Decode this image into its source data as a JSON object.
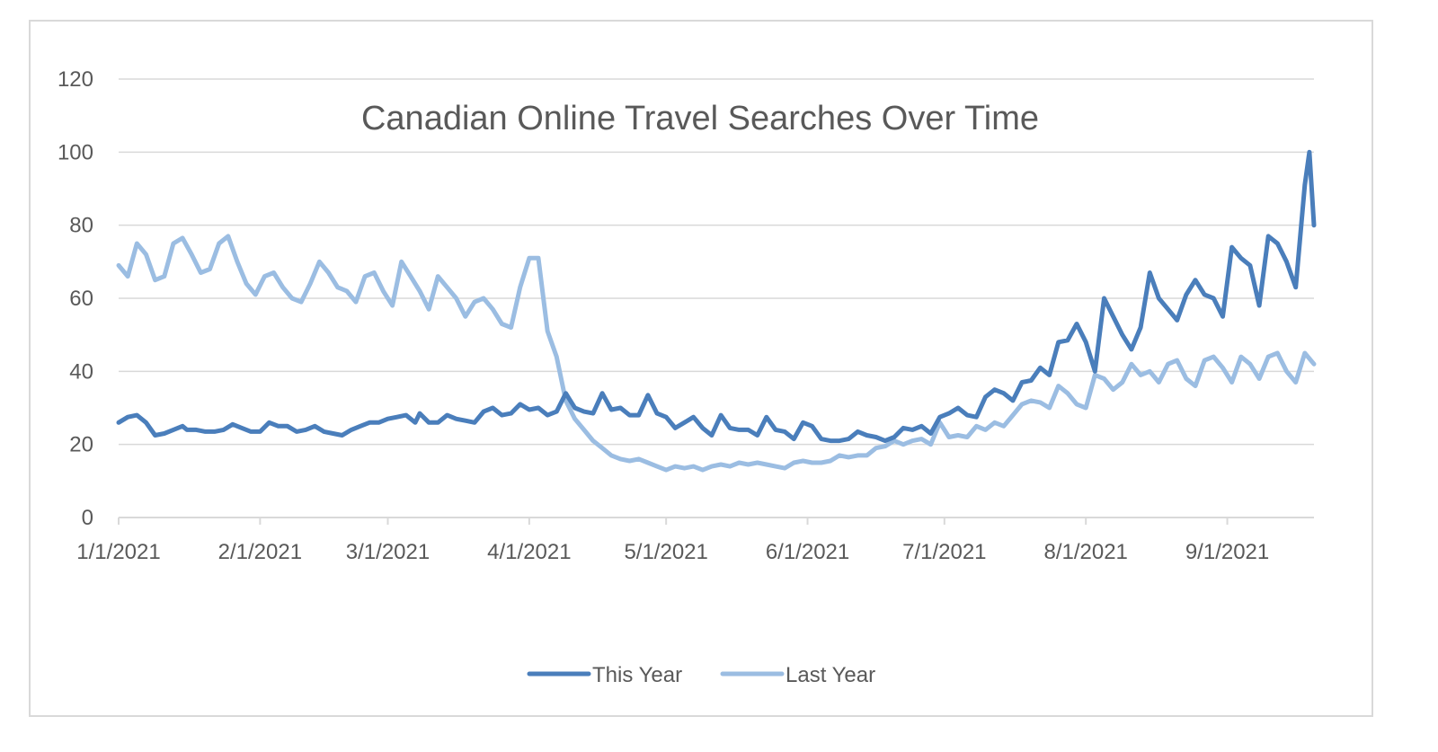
{
  "chart_data": {
    "type": "line",
    "title": "Canadian Online Travel Searches Over Time",
    "xlabel": "",
    "ylabel": "",
    "ylim": [
      0,
      120
    ],
    "y_ticks": [
      0,
      20,
      40,
      60,
      80,
      100,
      120
    ],
    "x_tick_labels": [
      "1/1/2021",
      "2/1/2021",
      "3/1/2021",
      "4/1/2021",
      "5/1/2021",
      "6/1/2021",
      "7/1/2021",
      "8/1/2021",
      "9/1/2021"
    ],
    "x_tick_days": [
      0,
      31,
      59,
      90,
      120,
      151,
      181,
      212,
      243
    ],
    "x_max_day": 262,
    "grid": "horizontal",
    "legend_position": "bottom",
    "colors": {
      "this_year": "#4a7ebb",
      "last_year": "#9bbde2",
      "grid": "#d9d9d9",
      "text": "#595959"
    },
    "series": [
      {
        "name": "This Year",
        "points": [
          [
            0,
            26
          ],
          [
            2,
            27.5
          ],
          [
            4,
            28
          ],
          [
            6,
            26
          ],
          [
            8,
            22.5
          ],
          [
            10,
            23
          ],
          [
            12,
            24
          ],
          [
            14,
            25
          ],
          [
            15,
            24
          ],
          [
            17,
            24
          ],
          [
            19,
            23.5
          ],
          [
            21,
            23.5
          ],
          [
            23,
            24
          ],
          [
            25,
            25.5
          ],
          [
            27,
            24.5
          ],
          [
            29,
            23.5
          ],
          [
            31,
            23.5
          ],
          [
            33,
            26
          ],
          [
            35,
            25
          ],
          [
            37,
            25
          ],
          [
            39,
            23.5
          ],
          [
            41,
            24
          ],
          [
            43,
            25
          ],
          [
            45,
            23.5
          ],
          [
            47,
            23
          ],
          [
            49,
            22.5
          ],
          [
            51,
            24
          ],
          [
            53,
            25
          ],
          [
            55,
            26
          ],
          [
            57,
            26
          ],
          [
            59,
            27
          ],
          [
            61,
            27.5
          ],
          [
            63,
            28
          ],
          [
            65,
            26
          ],
          [
            66,
            28.5
          ],
          [
            68,
            26
          ],
          [
            70,
            26
          ],
          [
            72,
            28
          ],
          [
            74,
            27
          ],
          [
            76,
            26.5
          ],
          [
            78,
            26
          ],
          [
            80,
            29
          ],
          [
            82,
            30
          ],
          [
            84,
            28
          ],
          [
            86,
            28.5
          ],
          [
            88,
            31
          ],
          [
            90,
            29.5
          ],
          [
            92,
            30
          ],
          [
            94,
            28
          ],
          [
            96,
            29
          ],
          [
            98,
            34
          ],
          [
            100,
            30
          ],
          [
            102,
            29
          ],
          [
            104,
            28.5
          ],
          [
            106,
            34
          ],
          [
            108,
            29.5
          ],
          [
            110,
            30
          ],
          [
            112,
            28
          ],
          [
            114,
            28
          ],
          [
            116,
            33.5
          ],
          [
            118,
            28.5
          ],
          [
            120,
            27.5
          ],
          [
            122,
            24.5
          ],
          [
            124,
            26
          ],
          [
            126,
            27.5
          ],
          [
            128,
            24.5
          ],
          [
            130,
            22.5
          ],
          [
            132,
            28
          ],
          [
            134,
            24.5
          ],
          [
            136,
            24
          ],
          [
            138,
            24
          ],
          [
            140,
            22.5
          ],
          [
            142,
            27.5
          ],
          [
            144,
            24
          ],
          [
            146,
            23.5
          ],
          [
            148,
            21.5
          ],
          [
            150,
            26
          ],
          [
            152,
            25
          ],
          [
            154,
            21.5
          ],
          [
            156,
            21
          ],
          [
            158,
            21
          ],
          [
            160,
            21.5
          ],
          [
            162,
            23.5
          ],
          [
            164,
            22.5
          ],
          [
            166,
            22
          ],
          [
            168,
            21
          ],
          [
            170,
            22
          ],
          [
            172,
            24.5
          ],
          [
            174,
            24
          ],
          [
            176,
            25
          ],
          [
            178,
            23
          ],
          [
            180,
            27.5
          ],
          [
            182,
            28.5
          ],
          [
            184,
            30
          ],
          [
            186,
            28
          ],
          [
            188,
            27.5
          ],
          [
            190,
            33
          ],
          [
            192,
            35
          ],
          [
            194,
            34
          ],
          [
            196,
            32
          ],
          [
            198,
            37
          ],
          [
            200,
            37.5
          ],
          [
            202,
            41
          ],
          [
            204,
            39
          ],
          [
            206,
            48
          ],
          [
            208,
            48.5
          ],
          [
            210,
            53
          ],
          [
            212,
            48
          ],
          [
            214,
            40
          ],
          [
            216,
            60
          ],
          [
            218,
            55
          ],
          [
            220,
            50
          ],
          [
            222,
            46
          ],
          [
            224,
            52
          ],
          [
            226,
            67
          ],
          [
            228,
            60
          ],
          [
            230,
            57
          ],
          [
            232,
            54
          ],
          [
            234,
            61
          ],
          [
            236,
            65
          ],
          [
            238,
            61
          ],
          [
            240,
            60
          ],
          [
            242,
            55
          ],
          [
            244,
            74
          ],
          [
            246,
            71
          ],
          [
            248,
            69
          ],
          [
            250,
            58
          ],
          [
            252,
            77
          ],
          [
            254,
            75
          ],
          [
            256,
            70
          ],
          [
            258,
            63
          ],
          [
            260,
            91
          ],
          [
            261,
            100
          ],
          [
            262,
            80
          ]
        ]
      },
      {
        "name": "Last Year",
        "points": [
          [
            0,
            69
          ],
          [
            2,
            66
          ],
          [
            4,
            75
          ],
          [
            6,
            72
          ],
          [
            8,
            65
          ],
          [
            10,
            66
          ],
          [
            12,
            75
          ],
          [
            14,
            76.5
          ],
          [
            16,
            72
          ],
          [
            18,
            67
          ],
          [
            20,
            68
          ],
          [
            22,
            75
          ],
          [
            24,
            77
          ],
          [
            26,
            70
          ],
          [
            28,
            64
          ],
          [
            30,
            61
          ],
          [
            32,
            66
          ],
          [
            34,
            67
          ],
          [
            36,
            63
          ],
          [
            38,
            60
          ],
          [
            40,
            59
          ],
          [
            42,
            64
          ],
          [
            44,
            70
          ],
          [
            46,
            67
          ],
          [
            48,
            63
          ],
          [
            50,
            62
          ],
          [
            52,
            59
          ],
          [
            54,
            66
          ],
          [
            56,
            67
          ],
          [
            58,
            62
          ],
          [
            60,
            58
          ],
          [
            62,
            70
          ],
          [
            64,
            66
          ],
          [
            66,
            62
          ],
          [
            68,
            57
          ],
          [
            70,
            66
          ],
          [
            72,
            63
          ],
          [
            74,
            60
          ],
          [
            76,
            55
          ],
          [
            78,
            59
          ],
          [
            80,
            60
          ],
          [
            82,
            57
          ],
          [
            84,
            53
          ],
          [
            86,
            52
          ],
          [
            88,
            63
          ],
          [
            90,
            71
          ],
          [
            92,
            71
          ],
          [
            94,
            51
          ],
          [
            96,
            44
          ],
          [
            98,
            32
          ],
          [
            100,
            27
          ],
          [
            102,
            24
          ],
          [
            104,
            21
          ],
          [
            106,
            19
          ],
          [
            108,
            17
          ],
          [
            110,
            16
          ],
          [
            112,
            15.5
          ],
          [
            114,
            16
          ],
          [
            116,
            15
          ],
          [
            118,
            14
          ],
          [
            120,
            13
          ],
          [
            122,
            14
          ],
          [
            124,
            13.5
          ],
          [
            126,
            14
          ],
          [
            128,
            13
          ],
          [
            130,
            14
          ],
          [
            132,
            14.5
          ],
          [
            134,
            14
          ],
          [
            136,
            15
          ],
          [
            138,
            14.5
          ],
          [
            140,
            15
          ],
          [
            142,
            14.5
          ],
          [
            144,
            14
          ],
          [
            146,
            13.5
          ],
          [
            148,
            15
          ],
          [
            150,
            15.5
          ],
          [
            152,
            15
          ],
          [
            154,
            15
          ],
          [
            156,
            15.5
          ],
          [
            158,
            17
          ],
          [
            160,
            16.5
          ],
          [
            162,
            17
          ],
          [
            164,
            17
          ],
          [
            166,
            19
          ],
          [
            168,
            19.5
          ],
          [
            170,
            21
          ],
          [
            172,
            20
          ],
          [
            174,
            21
          ],
          [
            176,
            21.5
          ],
          [
            178,
            20
          ],
          [
            180,
            26
          ],
          [
            182,
            22
          ],
          [
            184,
            22.5
          ],
          [
            186,
            22
          ],
          [
            188,
            25
          ],
          [
            190,
            24
          ],
          [
            192,
            26
          ],
          [
            194,
            25
          ],
          [
            196,
            28
          ],
          [
            198,
            31
          ],
          [
            200,
            32
          ],
          [
            202,
            31.5
          ],
          [
            204,
            30
          ],
          [
            206,
            36
          ],
          [
            208,
            34
          ],
          [
            210,
            31
          ],
          [
            212,
            30
          ],
          [
            214,
            39
          ],
          [
            216,
            38
          ],
          [
            218,
            35
          ],
          [
            220,
            37
          ],
          [
            222,
            42
          ],
          [
            224,
            39
          ],
          [
            226,
            40
          ],
          [
            228,
            37
          ],
          [
            230,
            42
          ],
          [
            232,
            43
          ],
          [
            234,
            38
          ],
          [
            236,
            36
          ],
          [
            238,
            43
          ],
          [
            240,
            44
          ],
          [
            242,
            41
          ],
          [
            244,
            37
          ],
          [
            246,
            44
          ],
          [
            248,
            42
          ],
          [
            250,
            38
          ],
          [
            252,
            44
          ],
          [
            254,
            45
          ],
          [
            256,
            40
          ],
          [
            258,
            37
          ],
          [
            260,
            45
          ],
          [
            262,
            42
          ]
        ]
      }
    ]
  }
}
